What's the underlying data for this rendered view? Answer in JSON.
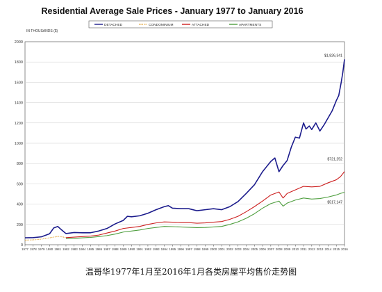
{
  "chart_data": {
    "type": "line",
    "title": "Residential Average Sale Prices  -  January 1977 to January 2016",
    "ylabel": "IN THOUSANDS ($)",
    "xlabel": "",
    "ylim": [
      0,
      2000
    ],
    "yticks": [
      0,
      200,
      400,
      600,
      800,
      1000,
      1200,
      1400,
      1600,
      1800,
      2000
    ],
    "xlim": [
      1977,
      2016
    ],
    "xticks": [
      "1977",
      "1978",
      "1979",
      "1980",
      "1981",
      "1982",
      "1983",
      "1984",
      "1985",
      "1986",
      "1987",
      "1988",
      "1989",
      "1990",
      "1991",
      "1992",
      "1993",
      "1994",
      "1995",
      "1996",
      "1997",
      "1998",
      "1999",
      "2000",
      "2001",
      "2002",
      "2003",
      "2004",
      "2005",
      "2006",
      "2007",
      "2008",
      "2009",
      "2010",
      "2011",
      "2012",
      "2013",
      "2014",
      "2015",
      "2016"
    ],
    "grid": true,
    "legend_position": "top",
    "series": [
      {
        "name": "DETACHED",
        "color": "#1b1b8c",
        "style": "solid",
        "x": [
          1977,
          1978,
          1979,
          1980,
          1980.5,
          1981,
          1981.3,
          1981.7,
          1982,
          1982.5,
          1983,
          1984,
          1985,
          1986,
          1987,
          1988,
          1989,
          1989.5,
          1990,
          1991,
          1992,
          1993,
          1994,
          1994.5,
          1995,
          1996,
          1997,
          1998,
          1999,
          2000,
          2001,
          2002,
          2003,
          2004,
          2005,
          2006,
          2007,
          2007.5,
          2008,
          2008.5,
          2009,
          2009.5,
          2010,
          2010.5,
          2011,
          2011.3,
          2011.7,
          2012,
          2012.5,
          2013,
          2013.5,
          2014,
          2014.5,
          2015,
          2015.3,
          2015.6,
          2015.8,
          2016
        ],
        "values": [
          68,
          70,
          78,
          108,
          165,
          180,
          158,
          130,
          110,
          115,
          120,
          118,
          118,
          135,
          160,
          205,
          240,
          280,
          275,
          285,
          310,
          345,
          375,
          385,
          360,
          355,
          355,
          335,
          345,
          355,
          345,
          375,
          425,
          505,
          590,
          720,
          820,
          855,
          720,
          780,
          830,
          960,
          1060,
          1050,
          1200,
          1140,
          1170,
          1135,
          1200,
          1120,
          1180,
          1250,
          1320,
          1420,
          1470,
          1600,
          1700,
          1826
        ]
      },
      {
        "name": "CONDOMINIUM",
        "color": "#e0a030",
        "style": "dotted",
        "x": [
          1977,
          1978,
          1979,
          1980,
          1981,
          1981.5,
          1982
        ],
        "values": [
          45,
          48,
          55,
          68,
          82,
          78,
          70
        ]
      },
      {
        "name": "ATTACHED",
        "color": "#cc1f1f",
        "style": "solid",
        "x": [
          1982,
          1983,
          1984,
          1985,
          1986,
          1987,
          1988,
          1989,
          1990,
          1991,
          1992,
          1993,
          1994,
          1995,
          1996,
          1997,
          1998,
          1999,
          2000,
          2001,
          2002,
          2003,
          2004,
          2005,
          2006,
          2007,
          2008,
          2008.5,
          2009,
          2010,
          2011,
          2012,
          2013,
          2014,
          2015,
          2015.5,
          2016
        ],
        "values": [
          70,
          75,
          80,
          85,
          95,
          115,
          135,
          160,
          170,
          180,
          200,
          215,
          225,
          222,
          218,
          218,
          212,
          215,
          222,
          228,
          250,
          280,
          325,
          375,
          430,
          490,
          520,
          460,
          505,
          540,
          575,
          570,
          575,
          610,
          640,
          670,
          721
        ]
      },
      {
        "name": "APARTMENTS",
        "color": "#4e9e3e",
        "style": "solid",
        "x": [
          1982,
          1983,
          1984,
          1985,
          1986,
          1987,
          1988,
          1989,
          1990,
          1991,
          1992,
          1993,
          1994,
          1995,
          1996,
          1997,
          1998,
          1999,
          2000,
          2001,
          2002,
          2003,
          2004,
          2005,
          2006,
          2007,
          2008,
          2008.5,
          2009,
          2010,
          2011,
          2012,
          2013,
          2014,
          2015,
          2015.5,
          2016
        ],
        "values": [
          60,
          62,
          68,
          72,
          80,
          90,
          105,
          125,
          135,
          145,
          160,
          170,
          180,
          178,
          175,
          172,
          168,
          170,
          175,
          180,
          200,
          225,
          260,
          305,
          360,
          405,
          430,
          380,
          410,
          440,
          460,
          450,
          455,
          470,
          490,
          505,
          517
        ]
      }
    ],
    "annotations": [
      {
        "text": "$1,826,341",
        "series": "DETACHED"
      },
      {
        "text": "$721,252",
        "series": "ATTACHED"
      },
      {
        "text": "$517,147",
        "series": "APARTMENTS"
      }
    ]
  },
  "caption": "温哥华1977年1月至2016年1月各类房屋平均售价走势图"
}
